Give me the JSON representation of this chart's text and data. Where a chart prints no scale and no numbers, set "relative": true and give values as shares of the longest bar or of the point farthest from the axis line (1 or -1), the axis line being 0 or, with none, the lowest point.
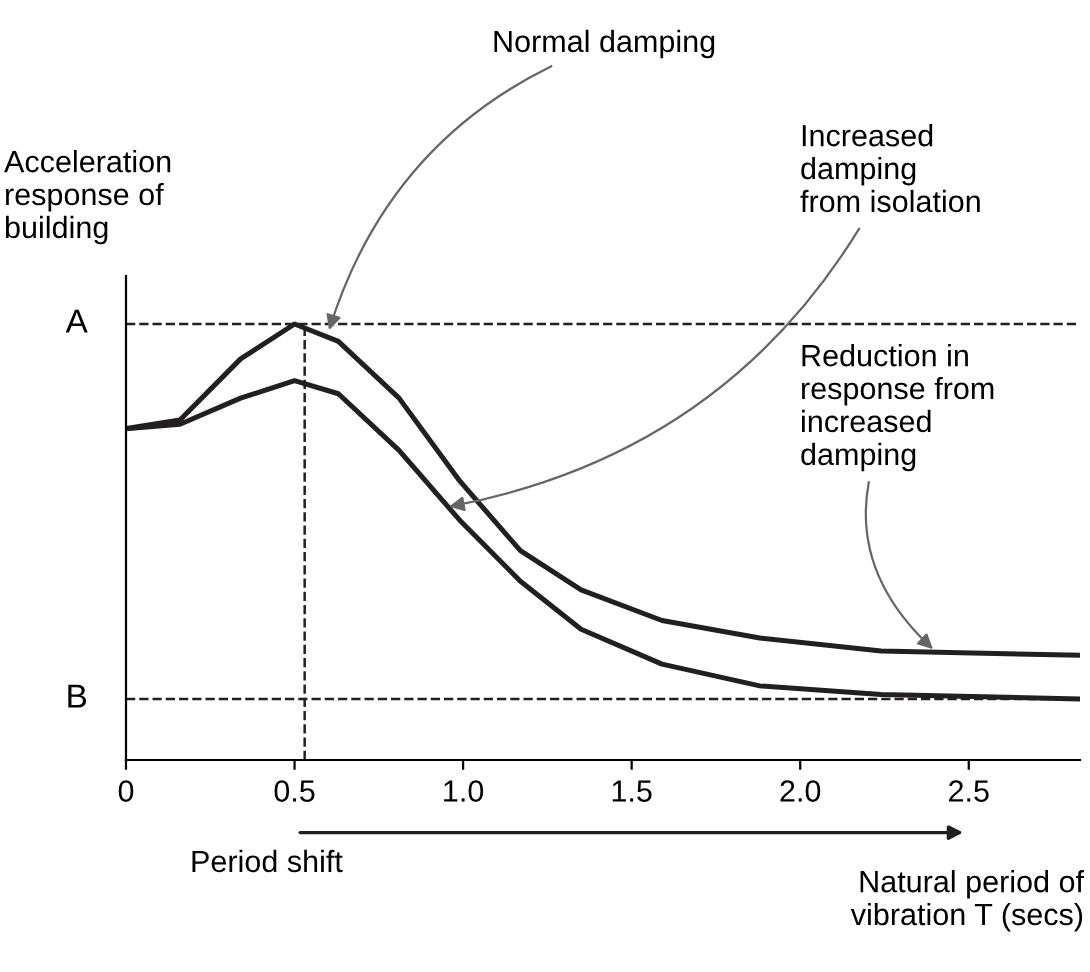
{
  "chart_data": {
    "type": "line",
    "relative": true,
    "xlabel": "Natural period of\nvibration T (secs)",
    "ylabel": "Acceleration\nresponse of\nbuilding",
    "x": [
      0,
      0.16,
      0.34,
      0.5,
      0.63,
      0.81,
      0.99,
      1.17,
      1.35,
      1.59,
      1.88,
      2.24,
      2.83
    ],
    "series": [
      {
        "color": "#231f20",
        "values": [
          0.76,
          0.78,
          0.92,
          1.0,
          0.96,
          0.83,
          0.64,
          0.48,
          0.39,
          0.32,
          0.28,
          0.25,
          0.24
        ]
      },
      {
        "color": "#231f20",
        "values": [
          0.76,
          0.77,
          0.83,
          0.87,
          0.84,
          0.71,
          0.55,
          0.41,
          0.3,
          0.22,
          0.17,
          0.15,
          0.14
        ]
      }
    ],
    "xlim": [
      0,
      2.83
    ],
    "xticks": [
      0,
      0.5,
      {
        "value": 1,
        "label": "1.0"
      },
      1.5,
      {
        "value": 2,
        "label": "2.0"
      },
      2.5
    ],
    "ref_lines": [
      {
        "axis": "y",
        "value": 1.0,
        "label": "A",
        "line_style": "dashed"
      },
      {
        "axis": "y",
        "value": 0.14,
        "label": "B",
        "line_style": "dashed"
      },
      {
        "axis": "x",
        "value": 0.53,
        "label": null,
        "line_style": "dashed"
      }
    ],
    "annotations": [
      {
        "text": "Normal damping",
        "x": 0.6,
        "y": 0.98
      },
      {
        "text": "Increased\ndamping\nfrom isolation",
        "x": 0.95,
        "y": 0.58
      },
      {
        "text": "Reduction in\nresponse from\nincreased\ndamping",
        "x": 2.4,
        "y": 0.25
      },
      "Period shift"
    ],
    "grid": false,
    "marker": "none",
    "line_style": "solid"
  }
}
